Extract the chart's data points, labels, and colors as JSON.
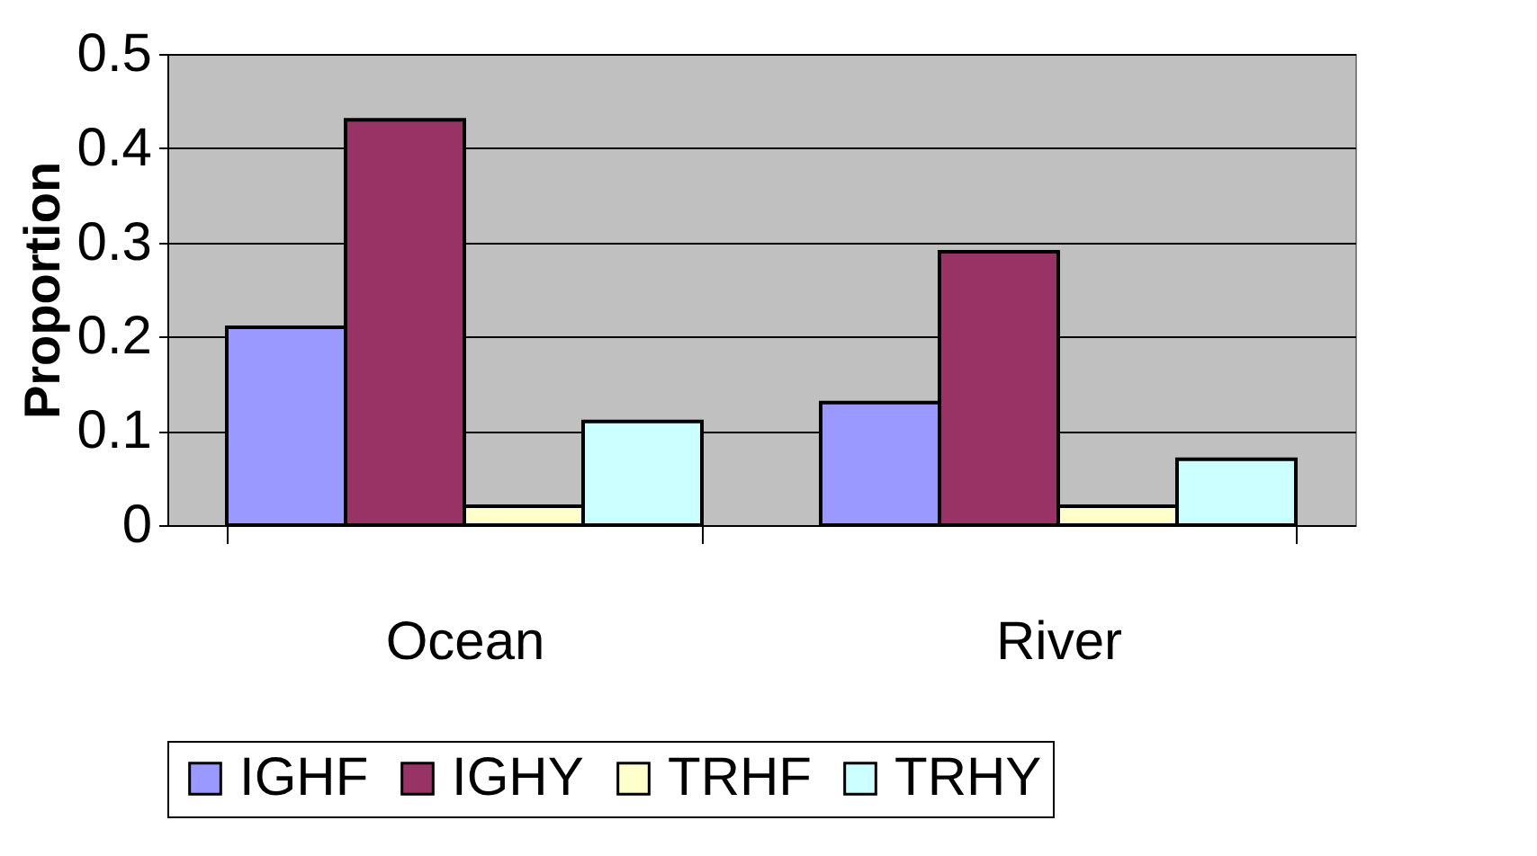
{
  "chart_data": {
    "type": "bar",
    "ylabel": "Proportion",
    "categories": [
      "Ocean",
      "River"
    ],
    "series": [
      {
        "name": "IGHF",
        "color": "#9999ff",
        "values": [
          0.21,
          0.13
        ]
      },
      {
        "name": "IGHY",
        "color": "#993366",
        "values": [
          0.43,
          0.29
        ]
      },
      {
        "name": "TRHF",
        "color": "#ffffcc",
        "values": [
          0.02,
          0.02
        ]
      },
      {
        "name": "TRHY",
        "color": "#ccffff",
        "values": [
          0.11,
          0.07
        ]
      }
    ],
    "ylim": [
      0,
      0.5
    ],
    "yticks": [
      0,
      0.1,
      0.2,
      0.3,
      0.4,
      0.5
    ],
    "grid": "y",
    "legend": "bottom"
  }
}
